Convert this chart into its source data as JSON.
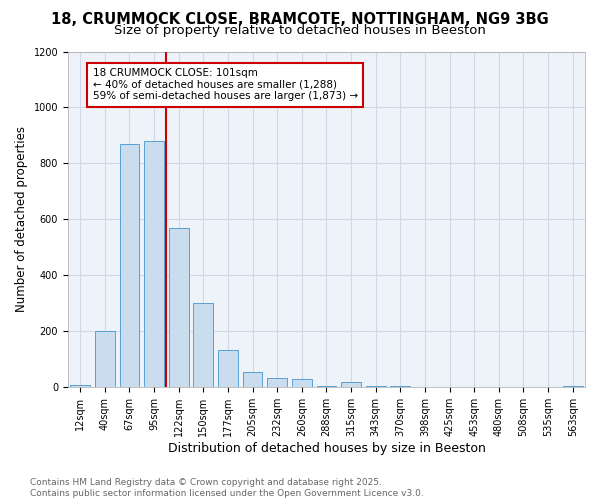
{
  "title1": "18, CRUMMOCK CLOSE, BRAMCOTE, NOTTINGHAM, NG9 3BG",
  "title2": "Size of property relative to detached houses in Beeston",
  "xlabel": "Distribution of detached houses by size in Beeston",
  "ylabel": "Number of detached properties",
  "categories": [
    "12sqm",
    "40sqm",
    "67sqm",
    "95sqm",
    "122sqm",
    "150sqm",
    "177sqm",
    "205sqm",
    "232sqm",
    "260sqm",
    "288sqm",
    "315sqm",
    "343sqm",
    "370sqm",
    "398sqm",
    "425sqm",
    "453sqm",
    "480sqm",
    "508sqm",
    "535sqm",
    "563sqm"
  ],
  "values": [
    10,
    200,
    870,
    880,
    570,
    300,
    135,
    55,
    35,
    30,
    5,
    20,
    5,
    5,
    2,
    1,
    1,
    0,
    0,
    0,
    5
  ],
  "bar_color": "#c9ddef",
  "bar_edge_color": "#5a9fd4",
  "red_line_x": 3.5,
  "red_line_color": "#cc0000",
  "ylim": [
    0,
    1200
  ],
  "yticks": [
    0,
    200,
    400,
    600,
    800,
    1000,
    1200
  ],
  "annotation_text": "18 CRUMMOCK CLOSE: 101sqm\n← 40% of detached houses are smaller (1,288)\n59% of semi-detached houses are larger (1,873) →",
  "annotation_box_color": "#ffffff",
  "annotation_box_edge_color": "#cc0000",
  "footer1": "Contains HM Land Registry data © Crown copyright and database right 2025.",
  "footer2": "Contains public sector information licensed under the Open Government Licence v3.0.",
  "title1_fontsize": 10.5,
  "title2_fontsize": 9.5,
  "xlabel_fontsize": 9,
  "ylabel_fontsize": 8.5,
  "tick_fontsize": 7,
  "annotation_fontsize": 7.5,
  "footer_fontsize": 6.5,
  "grid_color": "#d0d8e8",
  "background_color": "#eef3f9"
}
